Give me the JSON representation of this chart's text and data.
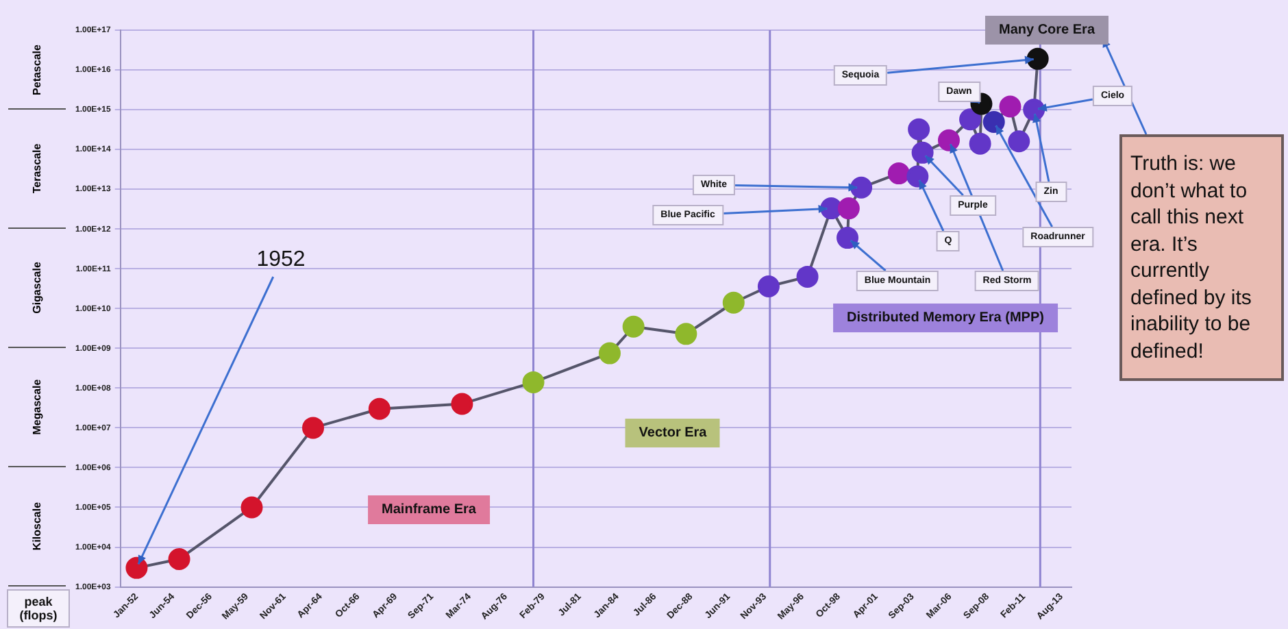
{
  "chart_data": {
    "type": "line",
    "ylabel": "peak (flops)",
    "log": true,
    "grid": "y",
    "marker": "circle",
    "x": [
      "1952-01",
      "1954-11",
      "1959-09",
      "1963-10",
      "1968-03",
      "1973-09",
      "1978-06",
      "1983-07",
      "1985-02",
      "1988-08",
      "1991-10",
      "1994-02",
      "1996-09",
      "1998-04",
      "1999-05",
      "1999-06",
      "2000-04",
      "2002-10",
      "2004-01",
      "2004-02",
      "2004-05",
      "2006-02",
      "2007-07",
      "2008-03",
      "2008-04",
      "2009-02",
      "2010-03",
      "2010-10",
      "2011-10",
      "2012-01"
    ],
    "series": [
      {
        "color": "#55556a",
        "values": [
          3000.0,
          5000.0,
          100000.0,
          10000000.0,
          30000000.0,
          40000000.0,
          140000000.0,
          750000000.0,
          3500000000.0,
          2300000000.0,
          14000000000.0,
          36000000000.0,
          63000000000.0,
          3300000000000.0,
          600000000000.0,
          3300000000000.0,
          11000000000000.0,
          25000000000000.0,
          21000000000000.0,
          320000000000000.0,
          83000000000000.0,
          170000000000000.0,
          570000000000000.0,
          140000000000000.0,
          1400000000000000.0,
          490000000000000.0,
          1200000000000000.0,
          160000000000000.0,
          1000000000000000.0,
          1.9e+16
        ],
        "colors": [
          "#d4142c",
          "#d4142c",
          "#d4142c",
          "#d4142c",
          "#d4142c",
          "#d4142c",
          "#8fb82c",
          "#8fb82c",
          "#8fb82c",
          "#8fb82c",
          "#8fb82c",
          "#6236c8",
          "#6236c8",
          "#6236c8",
          "#6236c8",
          "#a01cb0",
          "#6236c8",
          "#a01cb0",
          "#6236c8",
          "#6236c8",
          "#6236c8",
          "#a01cb0",
          "#6236c8",
          "#6236c8",
          "#111111",
          "#3a2fb0",
          "#a01cb0",
          "#6236c8",
          "#6236c8",
          "#111111"
        ]
      }
    ],
    "xlim": [
      "1950-12",
      "2014-04"
    ],
    "xticks": [
      {
        "value": "1952-01",
        "label": "Jan-52"
      },
      {
        "value": "1954-06",
        "label": "Jun-54"
      },
      {
        "value": "1956-12",
        "label": "Dec-56"
      },
      {
        "value": "1959-05",
        "label": "May-59"
      },
      {
        "value": "1961-11",
        "label": "Nov-61"
      },
      {
        "value": "1964-04",
        "label": "Apr-64"
      },
      {
        "value": "1966-10",
        "label": "Oct-66"
      },
      {
        "value": "1969-04",
        "label": "Apr-69"
      },
      {
        "value": "1971-09",
        "label": "Sep-71"
      },
      {
        "value": "1974-03",
        "label": "Mar-74"
      },
      {
        "value": "1976-08",
        "label": "Aug-76"
      },
      {
        "value": "1979-02",
        "label": "Feb-79"
      },
      {
        "value": "1981-07",
        "label": "Jul-81"
      },
      {
        "value": "1984-01",
        "label": "Jan-84"
      },
      {
        "value": "1986-07",
        "label": "Jul-86"
      },
      {
        "value": "1988-12",
        "label": "Dec-88"
      },
      {
        "value": "1991-06",
        "label": "Jun-91"
      },
      {
        "value": "1993-11",
        "label": "Nov-93"
      },
      {
        "value": "1996-05",
        "label": "May-96"
      },
      {
        "value": "1998-10",
        "label": "Oct-98"
      },
      {
        "value": "2001-04",
        "label": "Apr-01"
      },
      {
        "value": "2003-09",
        "label": "Sep-03"
      },
      {
        "value": "2006-03",
        "label": "Mar-06"
      },
      {
        "value": "2008-09",
        "label": "Sep-08"
      },
      {
        "value": "2011-02",
        "label": "Feb-11"
      },
      {
        "value": "2013-08",
        "label": "Aug-13"
      }
    ],
    "ylim": [
      1000.0,
      1e+17
    ],
    "yticks": [
      {
        "value": 1000.0,
        "label": "1.00E+03"
      },
      {
        "value": 10000.0,
        "label": "1.00E+04"
      },
      {
        "value": 100000.0,
        "label": "1.00E+05"
      },
      {
        "value": 1000000.0,
        "label": "1.00E+06"
      },
      {
        "value": 10000000.0,
        "label": "1.00E+07"
      },
      {
        "value": 100000000.0,
        "label": "1.00E+08"
      },
      {
        "value": 1000000000.0,
        "label": "1.00E+09"
      },
      {
        "value": 10000000000.0,
        "label": "1.00E+10"
      },
      {
        "value": 100000000000.0,
        "label": "1.00E+11"
      },
      {
        "value": 1000000000000.0,
        "label": "1.00E+12"
      },
      {
        "value": 10000000000000.0,
        "label": "1.00E+13"
      },
      {
        "value": 100000000000000.0,
        "label": "1.00E+14"
      },
      {
        "value": 1000000000000000.0,
        "label": "1.00E+15"
      },
      {
        "value": 1e+16,
        "label": "1.00E+16"
      },
      {
        "value": 1e+17,
        "label": "1.00E+17"
      }
    ],
    "ref_lines": [
      {
        "axis": "x",
        "value": "1978-06",
        "color": "#8f84d0"
      },
      {
        "axis": "x",
        "value": "1994-03",
        "color": "#8f84d0"
      },
      {
        "axis": "x",
        "value": "2012-03",
        "color": "#8f84d0"
      }
    ],
    "annotations": [
      {
        "text": "1952",
        "x": "1952-01",
        "y": 3000.0
      },
      "Mainframe Era",
      "Vector Era",
      "Distributed Memory Era (MPP)",
      "Many Core Era",
      {
        "text": "Sequoia",
        "x": "2012-01",
        "y": 1.9e+16
      },
      {
        "text": "Dawn",
        "x": "2008-04",
        "y": 1400000000000000.0
      },
      {
        "text": "Cielo",
        "x": "2011-10",
        "y": 1000000000000000.0
      },
      {
        "text": "Blue Pacific",
        "x": "1998-04",
        "y": 3300000000000.0
      },
      {
        "text": "White",
        "x": "2000-04",
        "y": 11000000000000.0
      },
      {
        "text": "Purple",
        "x": "2004-05",
        "y": 83000000000000.0
      },
      {
        "text": "Q",
        "x": "2004-01",
        "y": 21000000000000.0
      },
      {
        "text": "Blue Mountain",
        "x": "1999-05",
        "y": 600000000000.0
      },
      {
        "text": "Red Storm",
        "x": "2006-02",
        "y": 170000000000000.0
      },
      {
        "text": "Roadrunner",
        "x": "2009-02",
        "y": 490000000000000.0
      },
      {
        "text": "Zin",
        "x": "2011-10",
        "y": 1000000000000000.0
      },
      "Truth is: we don’t what to call this next era. It’s currently defined by its inability to be defined!",
      "Petascale",
      "Terascale",
      "Gigascale",
      "Megascale",
      "Kiloscale"
    ]
  }
}
